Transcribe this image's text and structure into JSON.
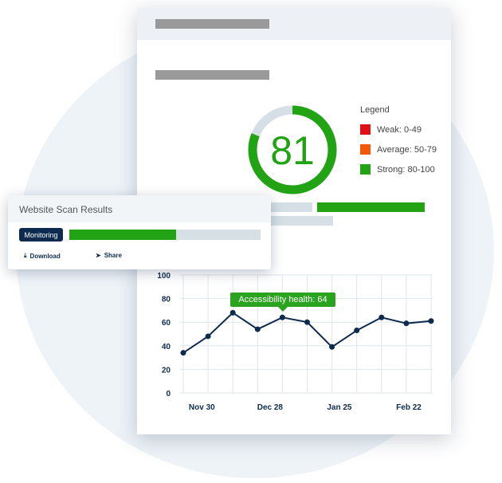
{
  "score": {
    "value": 81,
    "max": 100,
    "color": "#22a314",
    "track": "#d6dfe6"
  },
  "legend": {
    "title": "Legend",
    "items": [
      {
        "label": "Weak: 0-49",
        "color": "#e01016"
      },
      {
        "label": "Average: 50-79",
        "color": "#f5570a"
      },
      {
        "label": "Strong: 80-100",
        "color": "#22a314"
      }
    ]
  },
  "scan_card": {
    "title": "Website Scan Results",
    "status": "Monitoring",
    "progress": 0.56,
    "download": "Download",
    "share": "Share"
  },
  "tooltip": "Accessibility health: 64",
  "chart_data": {
    "type": "line",
    "ylim": [
      0,
      100
    ],
    "yticks": [
      0,
      20,
      40,
      60,
      80,
      100
    ],
    "values": [
      34,
      48,
      68,
      54,
      64,
      60,
      39,
      53,
      64,
      59,
      61
    ],
    "xticks": [
      {
        "label": "Nov 30",
        "at": 0.75
      },
      {
        "label": "Dec 28",
        "at": 3.5
      },
      {
        "label": "Jan 25",
        "at": 6.3
      },
      {
        "label": "Feb 22",
        "at": 9.1
      }
    ],
    "grid": true,
    "line_color": "#0d2b4e"
  }
}
